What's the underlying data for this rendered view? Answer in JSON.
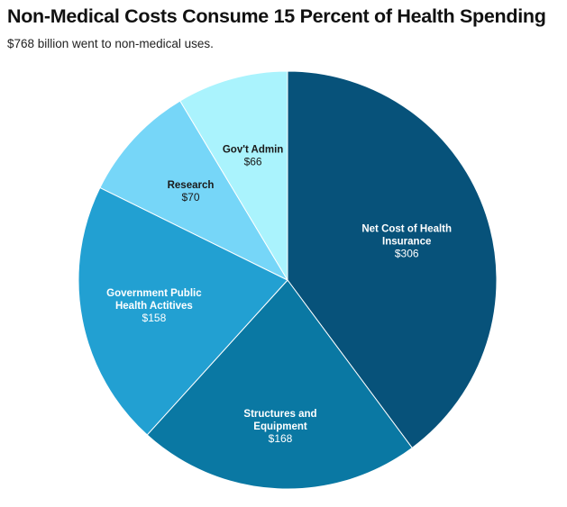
{
  "chart_data": {
    "type": "pie",
    "title": "Non-Medical Costs Consume 15 Percent of Health Spending",
    "subtitle": "$768 billion went to non-medical uses.",
    "unit": "billion USD",
    "total": 768,
    "slices": [
      {
        "label_lines": [
          "Net Cost of Health",
          "Insurance"
        ],
        "value": 306,
        "value_label": "$306",
        "color": "#07527a",
        "text_color": "#ffffff"
      },
      {
        "label_lines": [
          "Structures and",
          "Equipment"
        ],
        "value": 168,
        "value_label": "$168",
        "color": "#0a78a3",
        "text_color": "#ffffff"
      },
      {
        "label_lines": [
          "Government Public",
          "Health Actitives"
        ],
        "value": 158,
        "value_label": "$158",
        "color": "#22a0d2",
        "text_color": "#ffffff"
      },
      {
        "label_lines": [
          "Research"
        ],
        "value": 70,
        "value_label": "$70",
        "color": "#76d6f8",
        "text_color": "#1a1a1a"
      },
      {
        "label_lines": [
          "Gov't Admin"
        ],
        "value": 66,
        "value_label": "$66",
        "color": "#aaf3fd",
        "text_color": "#1a1a1a"
      }
    ],
    "start_angle": "12 o'clock",
    "direction": "clockwise",
    "legend": "none"
  }
}
